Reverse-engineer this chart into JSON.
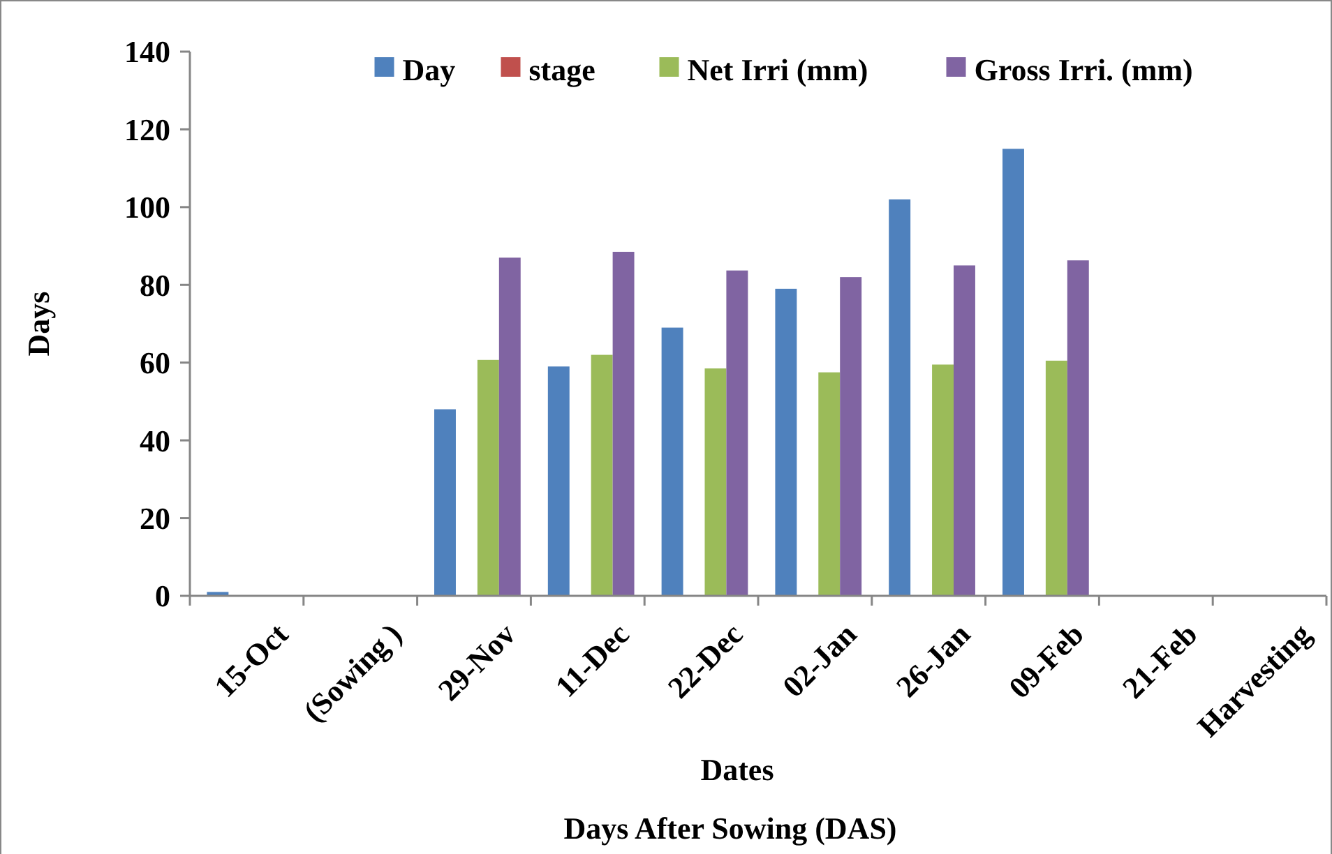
{
  "chart_data": {
    "type": "bar",
    "xlabel": "Dates",
    "ylabel": "Days",
    "annotations": [
      "Days After Sowing (DAS)"
    ],
    "categories": [
      "15-Oct",
      "(Sowing )",
      "29-Nov",
      "11-Dec",
      "22-Dec",
      "02-Jan",
      "26-Jan",
      "09-Feb",
      "21-Feb",
      "Harvesting"
    ],
    "series": [
      {
        "name": "Day",
        "color": "#4f81bd",
        "values": [
          1,
          null,
          48,
          59,
          69,
          79,
          102,
          115,
          null,
          null
        ]
      },
      {
        "name": "stage",
        "color": "#c0504d",
        "values": [
          null,
          null,
          null,
          null,
          null,
          null,
          null,
          null,
          null,
          null
        ]
      },
      {
        "name": "Net Irri (mm)",
        "color": "#9bbb59",
        "values": [
          null,
          null,
          60.7,
          62,
          58.5,
          57.5,
          59.5,
          60.5,
          null,
          null
        ]
      },
      {
        "name": "Gross Irri. (mm)",
        "color": "#8064a2",
        "values": [
          null,
          null,
          87,
          88.5,
          83.7,
          82,
          85,
          86.3,
          null,
          null
        ]
      }
    ],
    "ylim": [
      0,
      140
    ],
    "yticks": [
      0,
      20,
      40,
      60,
      80,
      100,
      120,
      140
    ],
    "grid": false,
    "legend": "top"
  }
}
